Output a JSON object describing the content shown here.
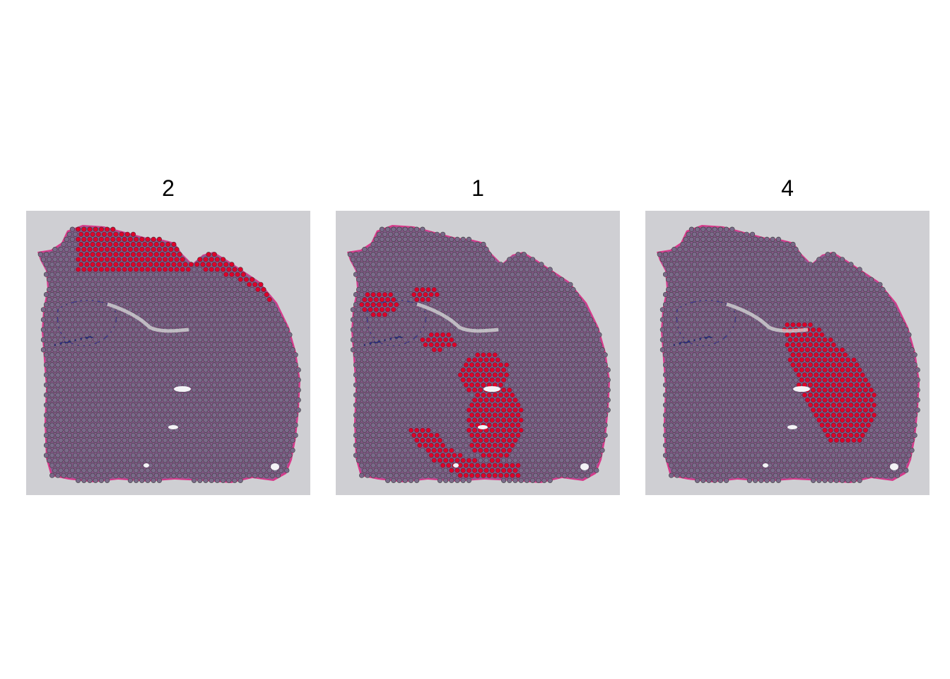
{
  "panels": [
    {
      "title": "2",
      "highlight_region": "cortex-outer-band"
    },
    {
      "title": "1",
      "highlight_region": "striatum-ventral-and-scattered"
    },
    {
      "title": "4",
      "highlight_region": "central-striatum-band"
    }
  ],
  "colors": {
    "background": "#ffffff",
    "slide": "#cfcfd3",
    "tissue": "#8a5a8e",
    "tissue_edge": "#d63a8a",
    "spot_base": "#7a6a8a",
    "spot_stroke": "#3a3a3a",
    "spot_highlight": "#e0002a"
  }
}
